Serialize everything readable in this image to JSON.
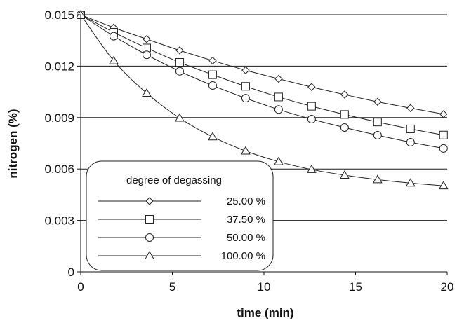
{
  "chart_data": {
    "type": "line",
    "xlabel": "time (min)",
    "ylabel": "nitrogen (%)",
    "xlim": [
      0,
      20
    ],
    "ylim": [
      0,
      0.015
    ],
    "xticks": [
      "0",
      "5",
      "10",
      "15",
      "20"
    ],
    "yticks": [
      "0",
      "0.003",
      "0.006",
      "0.009",
      "0.012",
      "0.015"
    ],
    "grid": "horizontal",
    "legend": {
      "title": "degree of degassing",
      "placement": "bottom-left"
    },
    "x": [
      0,
      1.8,
      3.6,
      5.4,
      7.2,
      9.0,
      10.8,
      12.6,
      14.4,
      16.2,
      18.0,
      19.8
    ],
    "series": [
      {
        "name": "25.00 %",
        "marker": "diamond",
        "values": [
          0.015,
          0.01425,
          0.01358,
          0.01292,
          0.01232,
          0.01176,
          0.01126,
          0.01078,
          0.01034,
          0.00992,
          0.00955,
          0.0092
        ]
      },
      {
        "name": "37.50 %",
        "marker": "square",
        "values": [
          0.015,
          0.01398,
          0.01306,
          0.01222,
          0.0115,
          0.01082,
          0.0102,
          0.00966,
          0.00918,
          0.00874,
          0.00834,
          0.00798
        ]
      },
      {
        "name": "50.00 %",
        "marker": "circle",
        "values": [
          0.015,
          0.01375,
          0.01266,
          0.0117,
          0.01087,
          0.01013,
          0.00947,
          0.00891,
          0.00842,
          0.00797,
          0.00756,
          0.0072
        ]
      },
      {
        "name": "100.00 %",
        "marker": "triangle",
        "values": [
          0.015,
          0.01232,
          0.01042,
          0.00897,
          0.00788,
          0.00705,
          0.00643,
          0.00597,
          0.00564,
          0.00538,
          0.00518,
          0.00502
        ]
      }
    ]
  }
}
